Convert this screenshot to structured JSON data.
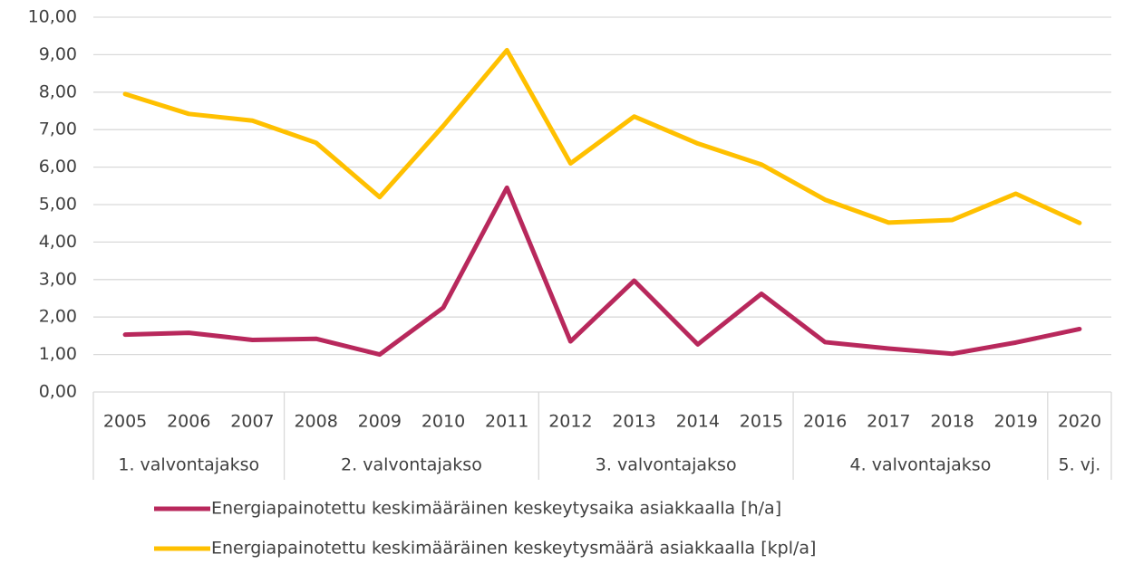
{
  "chart_data": {
    "type": "line",
    "categories": [
      "2005",
      "2006",
      "2007",
      "2008",
      "2009",
      "2010",
      "2011",
      "2012",
      "2013",
      "2014",
      "2015",
      "2016",
      "2017",
      "2018",
      "2019",
      "2020"
    ],
    "groups": [
      {
        "label": "1. valvontajakso",
        "size": 3
      },
      {
        "label": "2. valvontajakso",
        "size": 4
      },
      {
        "label": "3. valvontajakso",
        "size": 4
      },
      {
        "label": "4. valvontajakso",
        "size": 4
      },
      {
        "label": "5. vj.",
        "size": 1
      }
    ],
    "series": [
      {
        "name": "Energiapainotettu keskimääräinen keskeytysaika asiakkaalla [h/a]",
        "color": "#b8285c",
        "values": [
          1.53,
          1.58,
          1.39,
          1.42,
          1.0,
          2.25,
          5.45,
          1.35,
          2.97,
          1.27,
          2.62,
          1.33,
          1.16,
          1.02,
          1.32,
          1.68
        ]
      },
      {
        "name": "Energiapainotettu keskimääräinen keskeytysmäärä asiakkaalla [kpl/a]",
        "color": "#ffc000",
        "values": [
          7.95,
          7.42,
          7.24,
          6.65,
          5.2,
          7.1,
          9.12,
          6.1,
          7.35,
          6.63,
          6.07,
          5.13,
          4.52,
          4.59,
          5.29,
          4.51
        ]
      }
    ],
    "ylim": [
      0,
      10
    ],
    "yticks": [
      {
        "value": 0,
        "label": "0,00"
      },
      {
        "value": 1,
        "label": "1,00"
      },
      {
        "value": 2,
        "label": "2,00"
      },
      {
        "value": 3,
        "label": "3,00"
      },
      {
        "value": 4,
        "label": "4,00"
      },
      {
        "value": 5,
        "label": "5,00"
      },
      {
        "value": 6,
        "label": "6,00"
      },
      {
        "value": 7,
        "label": "7,00"
      },
      {
        "value": 8,
        "label": "8,00"
      },
      {
        "value": 9,
        "label": "9,00"
      },
      {
        "value": 10,
        "label": "10,00"
      }
    ],
    "grid": true,
    "legend": "bottom"
  }
}
